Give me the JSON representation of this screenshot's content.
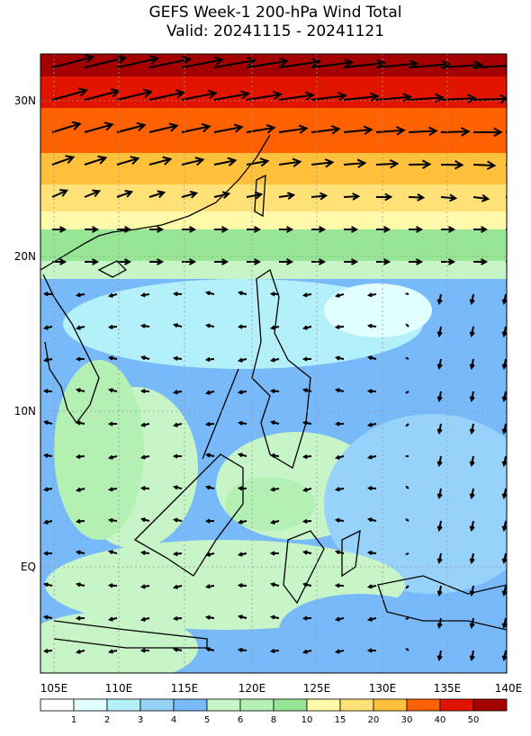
{
  "header": {
    "title": "GEFS Week-1 200-hPa Wind Total",
    "subtitle": "Valid: 20241115 - 20241121"
  },
  "map": {
    "lat_labels": [
      "30N",
      "20N",
      "10N",
      "EQ"
    ],
    "lon_labels": [
      "105E",
      "110E",
      "115E",
      "120E",
      "125E",
      "130E",
      "135E",
      "140E"
    ]
  },
  "colorbar": {
    "labels": [
      1,
      2,
      3,
      4,
      5,
      6,
      8,
      10,
      15,
      20,
      30,
      40,
      50
    ],
    "colors": [
      "#ffffff",
      "#e1ffff",
      "#b4f0fa",
      "#96d2fa",
      "#78b9fa",
      "#c8f5c8",
      "#b4f0b4",
      "#96e696",
      "#fffaaa",
      "#ffe178",
      "#ffc03c",
      "#ff6000",
      "#e11400",
      "#a50000"
    ]
  }
}
